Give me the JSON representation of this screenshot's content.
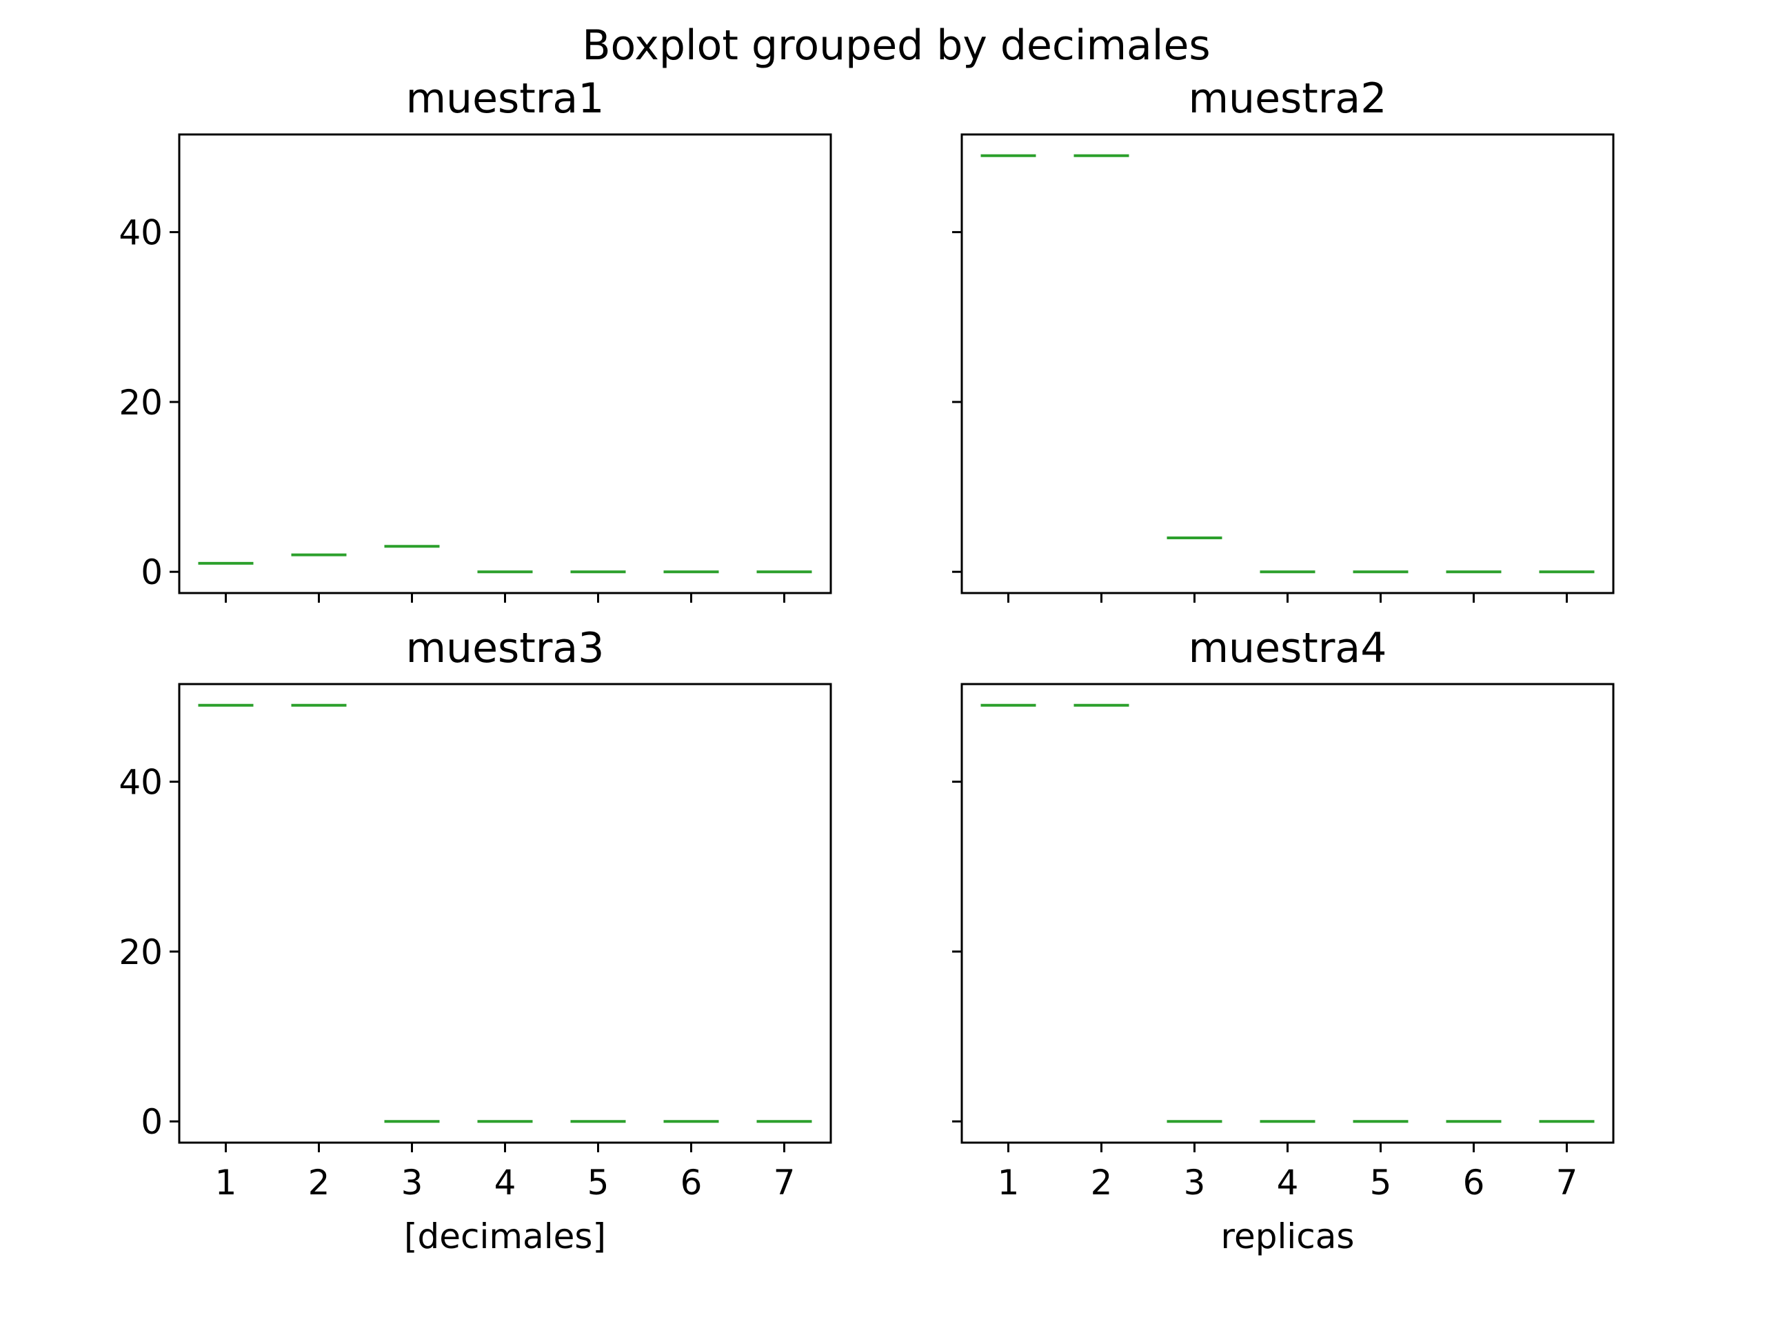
{
  "chart_data": {
    "type": "box",
    "title": "Boxplot grouped by decimales",
    "categories": [
      "1",
      "2",
      "3",
      "4",
      "5",
      "6",
      "7"
    ],
    "ylim": [
      -2.5,
      51.5
    ],
    "yticks": [
      0,
      20,
      40
    ],
    "grid": false,
    "median_color": "#2ca02c",
    "frame_color": "#000000",
    "panels": [
      {
        "title": "muestra1",
        "xlabel": "",
        "values": [
          1,
          2,
          3,
          0,
          0,
          0,
          0
        ]
      },
      {
        "title": "muestra2",
        "xlabel": "",
        "values": [
          49,
          49,
          4,
          0,
          0,
          0,
          0
        ]
      },
      {
        "title": "muestra3",
        "xlabel": "[decimales]",
        "values": [
          49,
          49,
          0,
          0,
          0,
          0,
          0
        ]
      },
      {
        "title": "muestra4",
        "xlabel": "replicas",
        "values": [
          49,
          49,
          0,
          0,
          0,
          0,
          0
        ]
      }
    ]
  }
}
